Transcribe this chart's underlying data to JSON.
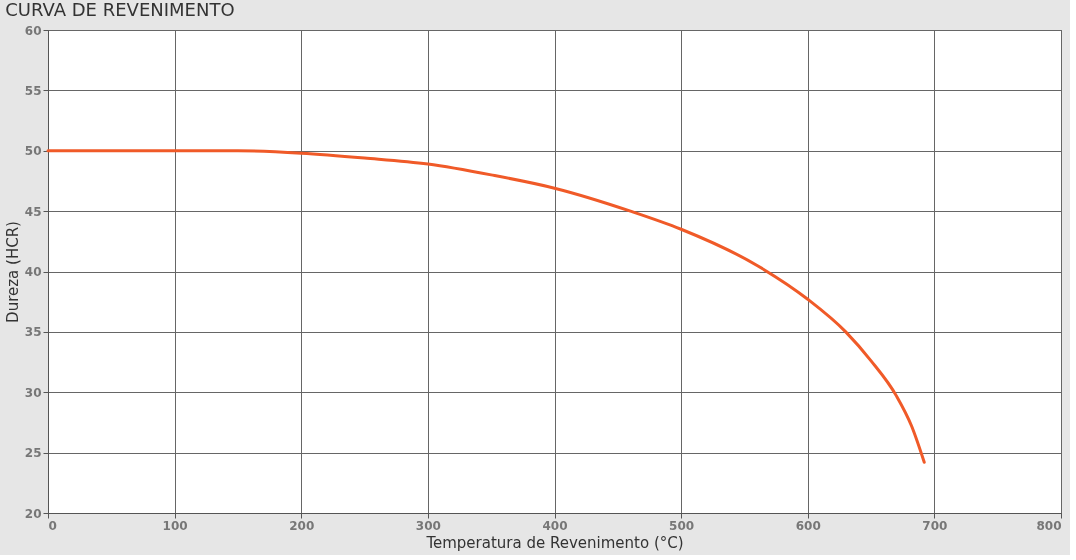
{
  "chart_data": {
    "type": "line",
    "title": "CURVA DE REVENIMENTO",
    "xlabel": "Temperatura de Revenimento (°C)",
    "ylabel": "Dureza (HCR)",
    "x": [
      0,
      100,
      150,
      200,
      250,
      300,
      350,
      400,
      460,
      500,
      560,
      600,
      630,
      650,
      670,
      682,
      692
    ],
    "series": [
      {
        "color": "#f05a28",
        "values": [
          50,
          50,
          50,
          49.8,
          49.4,
          48.9,
          48.0,
          46.9,
          45.0,
          43.5,
          40.5,
          37.7,
          35.0,
          32.6,
          29.7,
          27.2,
          24.2
        ]
      }
    ],
    "xlim": [
      0,
      800
    ],
    "xticks": [
      0,
      100,
      200,
      300,
      400,
      500,
      600,
      700,
      800
    ],
    "ylim": [
      20,
      60
    ],
    "yticks": [
      20,
      25,
      30,
      35,
      40,
      45,
      50,
      55,
      60
    ],
    "grid": true,
    "marker": "none",
    "line_style": "solid"
  }
}
